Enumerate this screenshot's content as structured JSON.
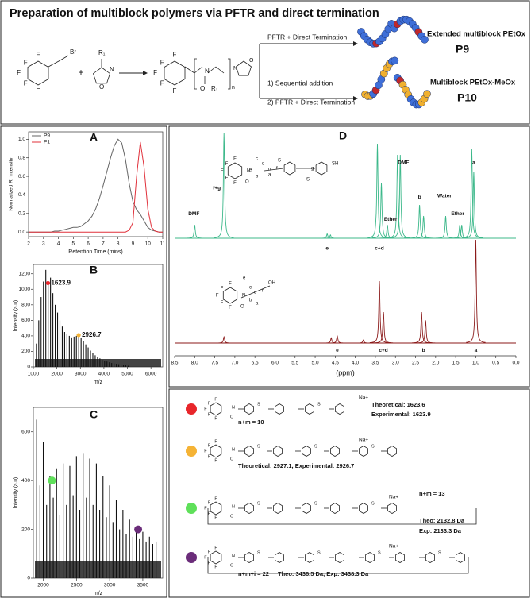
{
  "header": {
    "title": "Preparation of multiblock polymers via PFTR and direct termination",
    "atoms": {
      "F": "F",
      "N": "N",
      "O": "O",
      "S": "S"
    },
    "reagent_labels": [
      "Br",
      "R₁",
      "+",
      "R₁",
      "n"
    ],
    "arrow_top": "PFTR + Direct Termination",
    "arrow_bottom": [
      "1) Sequential addition",
      "2) PFTR + Direct Termination"
    ],
    "products": [
      {
        "name": "Extended multiblock PEtOx",
        "code": "P9"
      },
      {
        "name": "Multiblock PEtOx-MeOx",
        "code": "P10"
      }
    ]
  },
  "chart_data": [
    {
      "type": "line",
      "label": "A",
      "xlabel": "Retention Time (mins)",
      "ylabel": "Normalized RI Intensity",
      "x": [
        2,
        2.25,
        2.5,
        2.75,
        3,
        3.25,
        3.5,
        3.75,
        4,
        4.25,
        4.5,
        4.75,
        5,
        5.25,
        5.5,
        5.75,
        6,
        6.25,
        6.5,
        6.75,
        7,
        7.25,
        7.5,
        7.75,
        8,
        8.25,
        8.5,
        8.75,
        9,
        9.25,
        9.5,
        9.75,
        10,
        10.25,
        10.5,
        10.75,
        11
      ],
      "series": [
        {
          "name": "P9",
          "color": "#666666",
          "values": [
            0,
            0,
            0,
            0,
            0,
            0,
            0,
            0.01,
            0.01,
            0.02,
            0.03,
            0.04,
            0.05,
            0.05,
            0.06,
            0.09,
            0.12,
            0.17,
            0.25,
            0.36,
            0.5,
            0.65,
            0.8,
            0.93,
            1.0,
            0.96,
            0.78,
            0.52,
            0.33,
            0.24,
            0.19,
            0.12,
            0.05,
            0.02,
            0.01,
            0,
            0
          ]
        },
        {
          "name": "P1",
          "color": "#e0303a",
          "values": [
            0,
            0,
            0,
            0,
            0,
            0,
            0,
            0,
            0,
            0,
            0,
            0,
            0,
            0,
            0,
            0,
            0,
            0,
            0,
            0,
            0,
            0,
            0,
            0,
            0,
            0,
            0,
            0.02,
            0.1,
            0.6,
            0.97,
            0.7,
            0.25,
            0.05,
            0.01,
            0,
            0
          ]
        }
      ],
      "xlim": [
        2,
        11
      ],
      "xticks": [
        2,
        3,
        4,
        5,
        6,
        7,
        8,
        9,
        10,
        11
      ],
      "ylim": [
        -0.05,
        1.08
      ],
      "yticks": [
        {
          "value": 0,
          "label": "0.0"
        },
        {
          "value": 0.2,
          "label": "0.2"
        },
        {
          "value": 0.4,
          "label": "0.4"
        },
        {
          "value": 0.6,
          "label": "0.6"
        },
        {
          "value": 0.8,
          "label": "0.8"
        },
        {
          "value": 1,
          "label": "1.0"
        }
      ],
      "legend": "upper-left"
    },
    {
      "type": "spectrum",
      "label": "B",
      "xlabel": "m/z",
      "ylabel": "Intensity (a.u)",
      "color": "#111111",
      "x": [
        1130,
        1230,
        1330,
        1430,
        1530,
        1630,
        1730,
        1830,
        1930,
        2030,
        2130,
        2230,
        2330,
        2430,
        2530,
        2630,
        2730,
        2830,
        2930,
        3030,
        3130,
        3230,
        3330,
        3430,
        3530,
        3630,
        3730,
        3830,
        3930,
        4030,
        4130,
        4230,
        4330,
        4430,
        4530,
        4630,
        4730,
        4830,
        4930,
        5030
      ],
      "values": [
        300,
        600,
        900,
        1100,
        1250,
        1080,
        1150,
        950,
        800,
        700,
        600,
        520,
        450,
        420,
        400,
        380,
        390,
        400,
        410,
        370,
        330,
        290,
        250,
        210,
        180,
        150,
        130,
        110,
        90,
        80,
        70,
        60,
        50,
        45,
        40,
        35,
        30,
        25,
        20,
        15
      ],
      "xlim": [
        1000,
        6500
      ],
      "xticks": [
        1000,
        2000,
        3000,
        4000,
        5000,
        6000
      ],
      "ylim": [
        0,
        1320
      ],
      "yticks": [
        0,
        200,
        400,
        600,
        800,
        1000,
        1200
      ],
      "annotations": [
        {
          "x": 1623.9,
          "y": 1080,
          "color": "#e8262b"
        },
        {
          "x": 2926.7,
          "y": 410,
          "color": "#f5b335"
        }
      ]
    },
    {
      "type": "spectrum",
      "label": "C",
      "xlabel": "m/z",
      "ylabel": "Intensity (a.u)",
      "color": "#111111",
      "x": [
        1900,
        1950,
        2000,
        2050,
        2100,
        2150,
        2200,
        2250,
        2300,
        2350,
        2400,
        2450,
        2500,
        2550,
        2600,
        2650,
        2700,
        2750,
        2800,
        2850,
        2900,
        2950,
        3000,
        3050,
        3100,
        3150,
        3200,
        3250,
        3300,
        3350,
        3400,
        3450,
        3500,
        3550,
        3600,
        3650,
        3700
      ],
      "values": [
        650,
        380,
        560,
        300,
        420,
        330,
        450,
        260,
        470,
        300,
        460,
        340,
        500,
        280,
        510,
        330,
        490,
        300,
        470,
        280,
        420,
        250,
        380,
        230,
        320,
        200,
        280,
        180,
        240,
        170,
        210,
        160,
        190,
        150,
        170,
        140,
        150
      ],
      "xlim": [
        1850,
        3800
      ],
      "xticks": [
        2000,
        2500,
        3000,
        3500
      ],
      "ylim": [
        0,
        700
      ],
      "yticks": [
        0,
        200,
        400,
        600
      ],
      "markers": [
        {
          "x": 2130,
          "y": 400,
          "color": "#5fe05a"
        },
        {
          "x": 3430,
          "y": 200,
          "color": "#6b2d7a"
        }
      ]
    },
    {
      "type": "nmr",
      "label": "D",
      "xlabel": "(ppm)",
      "xlim": [
        8.5,
        0
      ],
      "xticks": [
        8.5,
        {
          "value": 8,
          "label": "8.0"
        },
        7.5,
        {
          "value": 7,
          "label": "7.0"
        },
        6.5,
        {
          "value": 6,
          "label": "6.0"
        },
        5.5,
        {
          "value": 5,
          "label": "5.0"
        },
        4.5,
        {
          "value": 4,
          "label": "4.0"
        },
        3.5,
        {
          "value": 3,
          "label": "3.0"
        },
        2.5,
        {
          "value": 2,
          "label": "2.0"
        },
        1.5,
        {
          "value": 1,
          "label": "1.0"
        },
        0.5,
        {
          "value": 0,
          "label": "0.0"
        }
      ],
      "ylim": [
        0,
        1
      ],
      "series": [
        {
          "color": "#3cb88a",
          "x": [
            8.0,
            7.27,
            4.7,
            4.62,
            3.45,
            3.35,
            3.2,
            2.95,
            2.88,
            2.4,
            2.3,
            1.75,
            1.4,
            1.35,
            1.1,
            1.05
          ],
          "values": [
            0.12,
            0.95,
            0.04,
            0.03,
            0.85,
            0.5,
            0.12,
            0.75,
            0.75,
            0.3,
            0.2,
            0.2,
            0.12,
            0.12,
            0.8,
            0.6
          ],
          "annotations": [
            {
              "text": "DMF",
              "x": 8.02,
              "y": 0.22
            },
            {
              "text": "f+g",
              "x": 7.45,
              "y": 0.45
            },
            {
              "text": "e",
              "x": 4.7,
              "y": -0.09
            },
            {
              "text": "c+d",
              "x": 3.4,
              "y": -0.09
            },
            {
              "text": "Ether",
              "x": 3.12,
              "y": 0.17
            },
            {
              "text": "DMF",
              "x": 2.8,
              "y": 0.68
            },
            {
              "text": "b",
              "x": 2.4,
              "y": 0.37
            },
            {
              "text": "Water",
              "x": 1.78,
              "y": 0.38
            },
            {
              "text": "Ether",
              "x": 1.45,
              "y": 0.22
            },
            {
              "text": "a",
              "x": 1.05,
              "y": 0.68
            }
          ]
        },
        {
          "color": "#8b1a1a",
          "x": [
            7.27,
            4.6,
            4.45,
            3.8,
            3.4,
            3.3,
            2.35,
            2.25,
            1.0
          ],
          "values": [
            0.06,
            0.05,
            0.07,
            0.03,
            0.6,
            0.3,
            0.3,
            0.22,
            1.0
          ],
          "annotations": [
            {
              "text": "e",
              "x": 4.45,
              "y": -0.07
            },
            {
              "text": "c+d",
              "x": 3.3,
              "y": -0.07
            },
            {
              "text": "b",
              "x": 2.3,
              "y": -0.07
            },
            {
              "text": "a",
              "x": 1.0,
              "y": -0.07
            }
          ]
        }
      ],
      "structures": [
        [
          "c",
          "e",
          "d",
          "f",
          "g",
          "a",
          "b",
          "n",
          "SH"
        ],
        [
          "e",
          "c",
          "d",
          "a",
          "b",
          "n",
          "OH"
        ]
      ]
    }
  ],
  "assignments": {
    "counterion": "Na+",
    "entries": [
      {
        "color": "#e8262b",
        "lines": [
          "Theoretical: 1623.6",
          "Experimental: 1623.9"
        ],
        "repeat": "n+m = 10"
      },
      {
        "color": "#f5b335",
        "lines": [
          "Theoretical: 2927.1, Experimental: 2926.7"
        ]
      },
      {
        "color": "#5fe05a",
        "lines": [
          "Theo: 2132.8 Da",
          "Exp: 2133.3 Da"
        ],
        "repeat": "n+m = 13"
      },
      {
        "color": "#6b2d7a",
        "lines": [
          "Theo: 3436.5 Da, Exp: 3438.3 Da"
        ],
        "repeat": "n+m+i = 22"
      }
    ]
  }
}
